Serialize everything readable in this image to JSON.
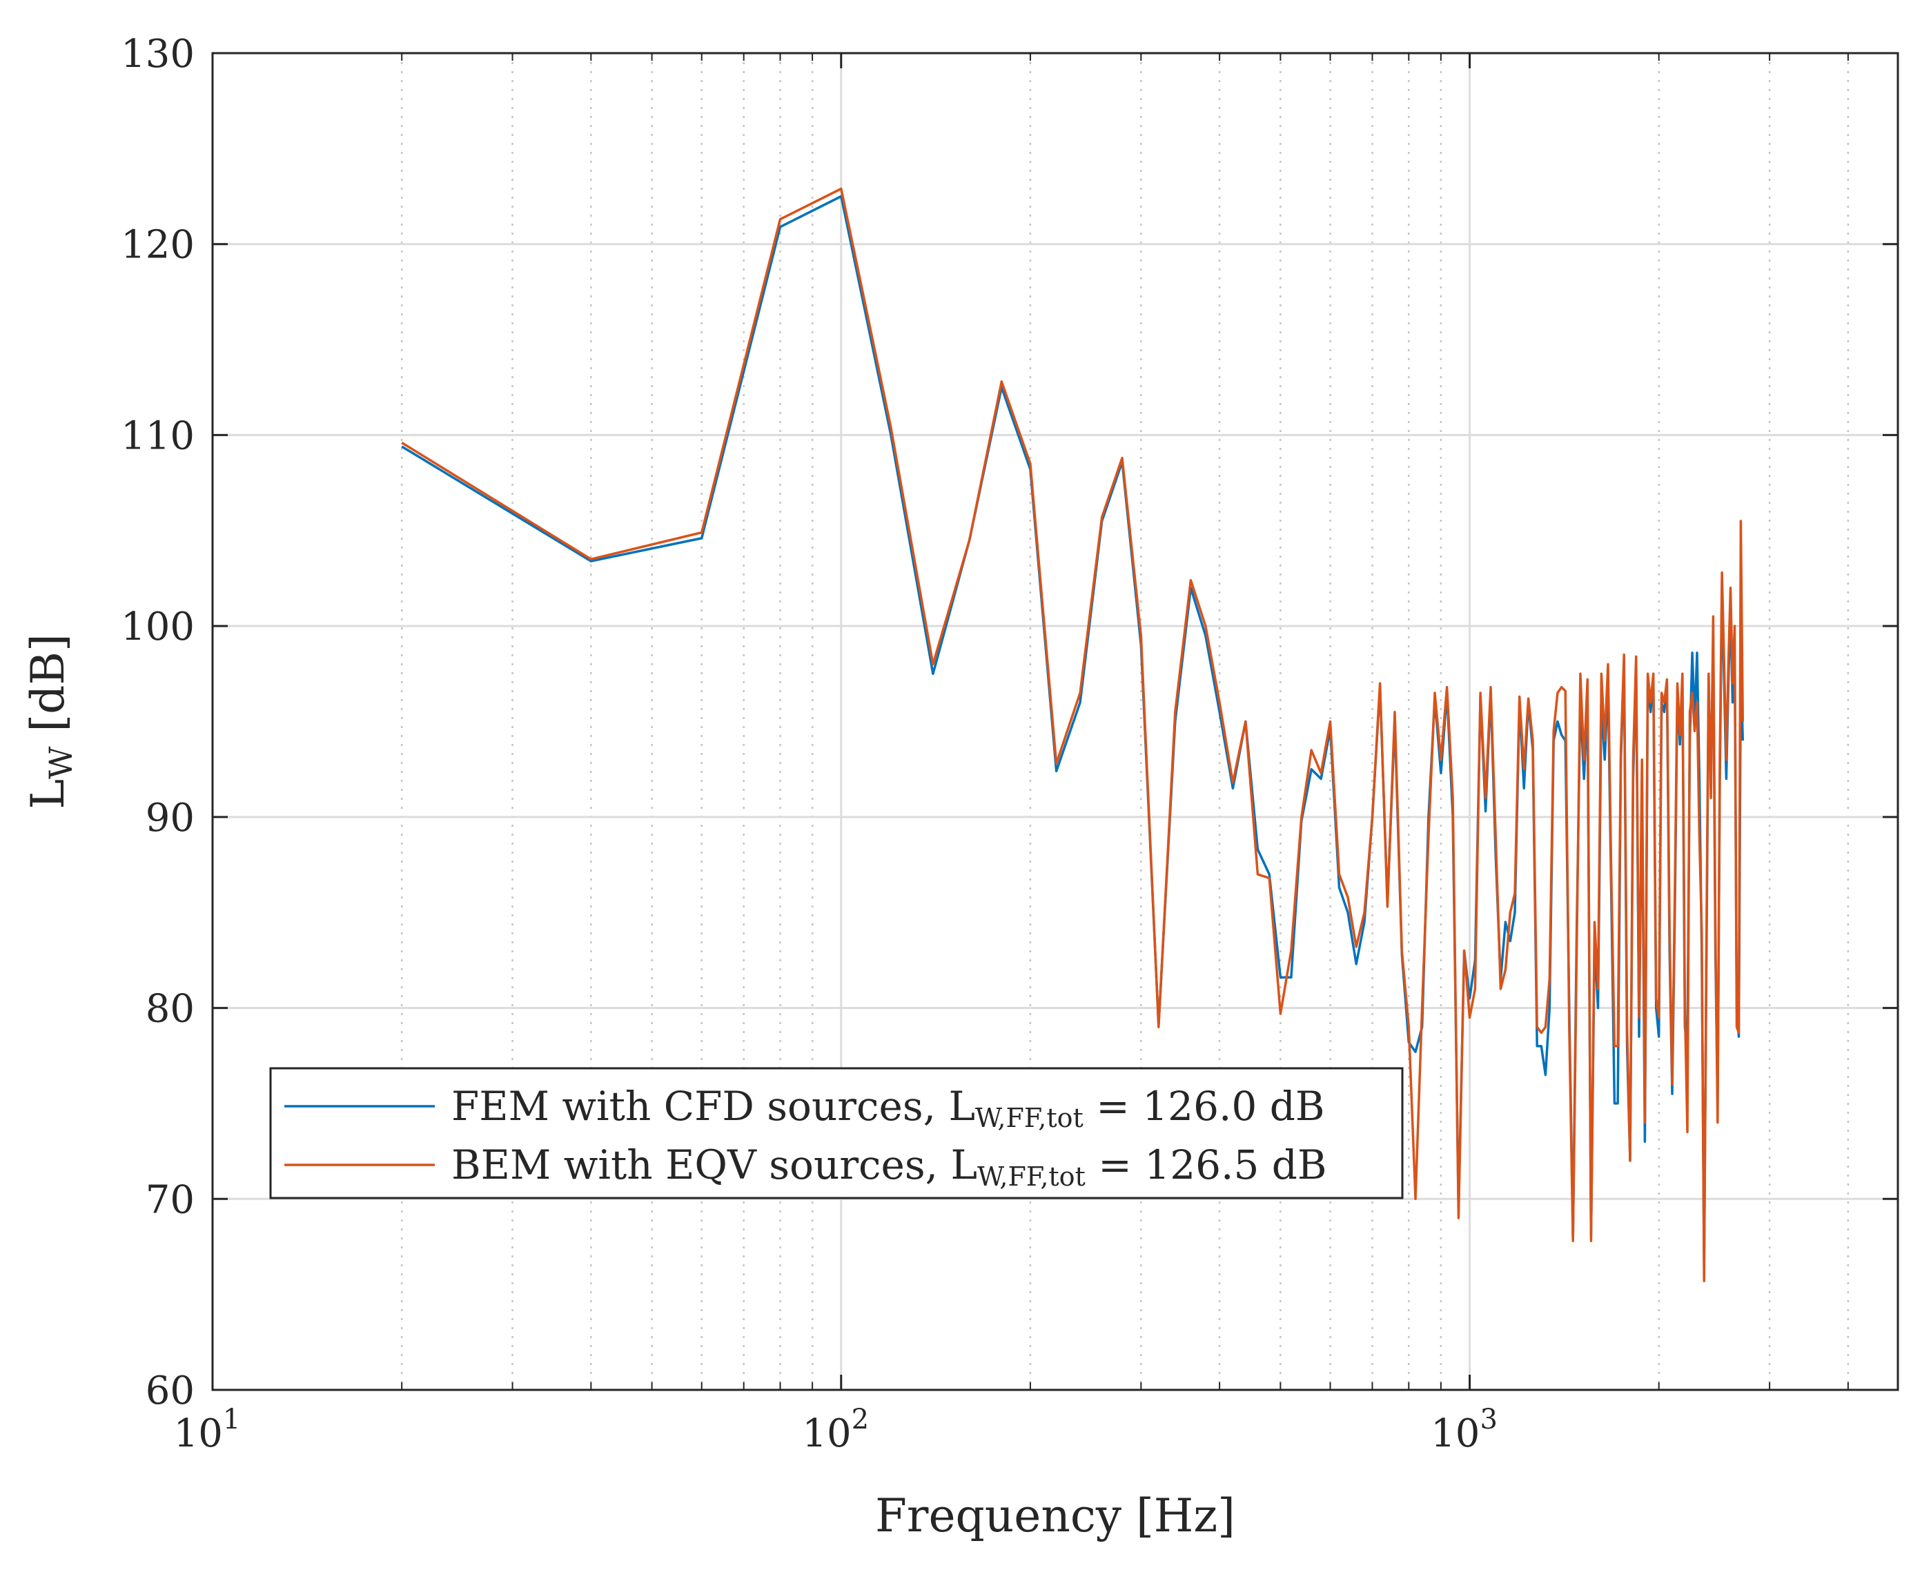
{
  "chart_data": {
    "type": "line",
    "x_scale": "log",
    "xlabel": "Frequency [Hz]",
    "ylabel": {
      "main": "L",
      "sub": "W",
      "unit": " [dB]"
    },
    "xlim": [
      10,
      4800
    ],
    "ylim": [
      60,
      130
    ],
    "grid": true,
    "x_major_ticks": [
      {
        "value": 10,
        "base": "10",
        "exp": "1"
      },
      {
        "value": 100,
        "base": "10",
        "exp": "2"
      },
      {
        "value": 1000,
        "base": "10",
        "exp": "3"
      }
    ],
    "y_ticks": [
      {
        "value": 60,
        "label": "60"
      },
      {
        "value": 70,
        "label": "70"
      },
      {
        "value": 80,
        "label": "80"
      },
      {
        "value": 90,
        "label": "90"
      },
      {
        "value": 100,
        "label": "100"
      },
      {
        "value": 110,
        "label": "110"
      },
      {
        "value": 120,
        "label": "120"
      },
      {
        "value": 130,
        "label": "130"
      }
    ],
    "legend_position": "bottom-left",
    "series": [
      {
        "name": "FEM with CFD sources",
        "legend_prefix": "FEM with CFD sources, ",
        "legend_sym": "L",
        "legend_sub": "W,FF,tot",
        "legend_suffix": " = 126.0 dB",
        "color": "#0072bd",
        "points": [
          [
            20,
            109.4
          ],
          [
            40,
            103.4
          ],
          [
            60,
            104.6
          ],
          [
            80,
            120.9
          ],
          [
            100,
            122.5
          ],
          [
            120,
            110.0
          ],
          [
            140,
            97.5
          ],
          [
            160,
            104.5
          ],
          [
            180,
            112.5
          ],
          [
            200,
            108.2
          ],
          [
            220,
            92.4
          ],
          [
            240,
            96.0
          ],
          [
            260,
            105.5
          ],
          [
            280,
            108.6
          ],
          [
            300,
            99.0
          ],
          [
            320,
            79.1
          ],
          [
            340,
            95.0
          ],
          [
            360,
            102.0
          ],
          [
            380,
            99.5
          ],
          [
            400,
            95.5
          ],
          [
            420,
            91.5
          ],
          [
            440,
            95.0
          ],
          [
            460,
            88.3
          ],
          [
            480,
            87.0
          ],
          [
            500,
            81.6
          ],
          [
            520,
            81.6
          ],
          [
            540,
            89.8
          ],
          [
            560,
            92.5
          ],
          [
            580,
            92.0
          ],
          [
            600,
            94.6
          ],
          [
            620,
            86.3
          ],
          [
            640,
            85.0
          ],
          [
            660,
            82.3
          ],
          [
            680,
            84.5
          ],
          [
            700,
            90.0
          ],
          [
            720,
            96.8
          ],
          [
            740,
            85.5
          ],
          [
            760,
            95.0
          ],
          [
            780,
            82.8
          ],
          [
            800,
            78.2
          ],
          [
            820,
            77.7
          ],
          [
            840,
            79.0
          ],
          [
            860,
            90.0
          ],
          [
            880,
            96.2
          ],
          [
            900,
            92.3
          ],
          [
            920,
            96.5
          ],
          [
            940,
            90.0
          ],
          [
            960,
            69.5
          ],
          [
            980,
            83.0
          ],
          [
            1000,
            80.5
          ],
          [
            1020,
            82.5
          ],
          [
            1040,
            96.3
          ],
          [
            1060,
            90.3
          ],
          [
            1080,
            96.5
          ],
          [
            1100,
            88.0
          ],
          [
            1120,
            81.5
          ],
          [
            1140,
            84.5
          ],
          [
            1160,
            83.5
          ],
          [
            1180,
            85.0
          ],
          [
            1200,
            96.0
          ],
          [
            1220,
            91.5
          ],
          [
            1240,
            96.0
          ],
          [
            1260,
            93.5
          ],
          [
            1280,
            78.0
          ],
          [
            1300,
            78.0
          ],
          [
            1320,
            76.5
          ],
          [
            1340,
            80.0
          ],
          [
            1360,
            94.0
          ],
          [
            1380,
            95.0
          ],
          [
            1400,
            94.3
          ],
          [
            1420,
            94.0
          ],
          [
            1440,
            80.0
          ],
          [
            1460,
            68.0
          ],
          [
            1480,
            84.0
          ],
          [
            1500,
            96.0
          ],
          [
            1520,
            92.0
          ],
          [
            1540,
            96.0
          ],
          [
            1560,
            68.0
          ],
          [
            1580,
            83.5
          ],
          [
            1600,
            80.0
          ],
          [
            1620,
            96.0
          ],
          [
            1640,
            93.0
          ],
          [
            1660,
            97.0
          ],
          [
            1680,
            86.0
          ],
          [
            1700,
            75.0
          ],
          [
            1720,
            75.0
          ],
          [
            1740,
            93.0
          ],
          [
            1760,
            98.0
          ],
          [
            1780,
            78.0
          ],
          [
            1800,
            72.0
          ],
          [
            1820,
            92.0
          ],
          [
            1840,
            98.0
          ],
          [
            1860,
            78.5
          ],
          [
            1880,
            92.0
          ],
          [
            1900,
            73.0
          ],
          [
            1920,
            97.0
          ],
          [
            1940,
            95.5
          ],
          [
            1960,
            97.2
          ],
          [
            1980,
            80.0
          ],
          [
            2000,
            78.5
          ],
          [
            2020,
            96.0
          ],
          [
            2040,
            95.5
          ],
          [
            2060,
            97.0
          ],
          [
            2080,
            83.0
          ],
          [
            2100,
            75.5
          ],
          [
            2120,
            85.0
          ],
          [
            2140,
            96.5
          ],
          [
            2160,
            93.8
          ],
          [
            2180,
            97.2
          ],
          [
            2200,
            79.0
          ],
          [
            2220,
            78.0
          ],
          [
            2240,
            94.0
          ],
          [
            2260,
            98.6
          ],
          [
            2280,
            95.0
          ],
          [
            2300,
            98.6
          ],
          [
            2320,
            92.0
          ],
          [
            2340,
            83.0
          ],
          [
            2360,
            66.5
          ],
          [
            2380,
            82.0
          ],
          [
            2400,
            97.0
          ],
          [
            2420,
            92.0
          ],
          [
            2440,
            99.5
          ],
          [
            2460,
            83.0
          ],
          [
            2480,
            75.0
          ],
          [
            2500,
            92.0
          ],
          [
            2520,
            102.0
          ],
          [
            2540,
            97.0
          ],
          [
            2560,
            92.0
          ],
          [
            2580,
            97.0
          ],
          [
            2600,
            101.0
          ],
          [
            2620,
            96.0
          ],
          [
            2640,
            99.0
          ],
          [
            2660,
            80.0
          ],
          [
            2680,
            78.5
          ],
          [
            2700,
            98.0
          ],
          [
            2720,
            94.0
          ]
        ]
      },
      {
        "name": "BEM with EQV sources",
        "legend_prefix": "BEM with EQV sources, ",
        "legend_sym": "L",
        "legend_sub": "W,FF,tot",
        "legend_suffix": " = 126.5 dB",
        "color": "#d95319",
        "points": [
          [
            20,
            109.6
          ],
          [
            40,
            103.5
          ],
          [
            60,
            104.9
          ],
          [
            80,
            121.3
          ],
          [
            100,
            122.9
          ],
          [
            120,
            110.4
          ],
          [
            140,
            98.0
          ],
          [
            160,
            104.5
          ],
          [
            180,
            112.8
          ],
          [
            200,
            108.5
          ],
          [
            220,
            92.8
          ],
          [
            240,
            96.5
          ],
          [
            260,
            105.7
          ],
          [
            280,
            108.8
          ],
          [
            300,
            99.5
          ],
          [
            320,
            79.0
          ],
          [
            340,
            95.5
          ],
          [
            360,
            102.4
          ],
          [
            380,
            100.0
          ],
          [
            400,
            96.0
          ],
          [
            420,
            91.8
          ],
          [
            440,
            95.0
          ],
          [
            460,
            87.0
          ],
          [
            480,
            86.8
          ],
          [
            500,
            79.7
          ],
          [
            520,
            83.0
          ],
          [
            540,
            90.0
          ],
          [
            560,
            93.5
          ],
          [
            580,
            92.3
          ],
          [
            600,
            95.0
          ],
          [
            620,
            87.0
          ],
          [
            640,
            85.8
          ],
          [
            660,
            83.2
          ],
          [
            680,
            85.0
          ],
          [
            700,
            90.0
          ],
          [
            720,
            97.0
          ],
          [
            740,
            85.3
          ],
          [
            760,
            95.5
          ],
          [
            780,
            83.0
          ],
          [
            800,
            79.0
          ],
          [
            820,
            70.0
          ],
          [
            840,
            80.0
          ],
          [
            860,
            89.0
          ],
          [
            880,
            96.5
          ],
          [
            900,
            93.0
          ],
          [
            920,
            96.8
          ],
          [
            940,
            91.0
          ],
          [
            960,
            69.0
          ],
          [
            980,
            83.0
          ],
          [
            1000,
            79.5
          ],
          [
            1020,
            81.0
          ],
          [
            1040,
            96.5
          ],
          [
            1060,
            91.0
          ],
          [
            1080,
            96.8
          ],
          [
            1100,
            89.0
          ],
          [
            1120,
            81.0
          ],
          [
            1140,
            82.0
          ],
          [
            1160,
            85.0
          ],
          [
            1180,
            86.0
          ],
          [
            1200,
            96.3
          ],
          [
            1220,
            92.5
          ],
          [
            1240,
            96.2
          ],
          [
            1260,
            94.0
          ],
          [
            1280,
            79.0
          ],
          [
            1300,
            78.7
          ],
          [
            1320,
            79.0
          ],
          [
            1340,
            81.5
          ],
          [
            1360,
            94.5
          ],
          [
            1380,
            96.5
          ],
          [
            1400,
            96.8
          ],
          [
            1420,
            96.6
          ],
          [
            1440,
            79.0
          ],
          [
            1460,
            67.8
          ],
          [
            1480,
            83.0
          ],
          [
            1500,
            97.5
          ],
          [
            1520,
            93.0
          ],
          [
            1540,
            97.2
          ],
          [
            1560,
            67.8
          ],
          [
            1580,
            84.5
          ],
          [
            1600,
            81.0
          ],
          [
            1620,
            97.5
          ],
          [
            1640,
            94.0
          ],
          [
            1660,
            98.0
          ],
          [
            1680,
            87.0
          ],
          [
            1700,
            78.0
          ],
          [
            1720,
            78.0
          ],
          [
            1740,
            93.5
          ],
          [
            1760,
            98.5
          ],
          [
            1780,
            79.0
          ],
          [
            1800,
            72.0
          ],
          [
            1820,
            93.0
          ],
          [
            1840,
            98.4
          ],
          [
            1860,
            79.5
          ],
          [
            1880,
            93.0
          ],
          [
            1900,
            74.0
          ],
          [
            1920,
            97.5
          ],
          [
            1940,
            96.0
          ],
          [
            1960,
            97.5
          ],
          [
            1980,
            80.5
          ],
          [
            2000,
            79.5
          ],
          [
            2020,
            96.5
          ],
          [
            2040,
            96.0
          ],
          [
            2060,
            97.2
          ],
          [
            2080,
            84.0
          ],
          [
            2100,
            76.0
          ],
          [
            2120,
            86.0
          ],
          [
            2140,
            97.0
          ],
          [
            2160,
            94.3
          ],
          [
            2180,
            97.5
          ],
          [
            2200,
            80.0
          ],
          [
            2220,
            73.5
          ],
          [
            2240,
            95.5
          ],
          [
            2260,
            96.5
          ],
          [
            2280,
            94.5
          ],
          [
            2300,
            96.0
          ],
          [
            2320,
            89.0
          ],
          [
            2340,
            84.0
          ],
          [
            2360,
            65.7
          ],
          [
            2380,
            83.0
          ],
          [
            2400,
            97.5
          ],
          [
            2420,
            91.0
          ],
          [
            2440,
            100.5
          ],
          [
            2460,
            84.0
          ],
          [
            2480,
            74.0
          ],
          [
            2500,
            93.0
          ],
          [
            2520,
            102.8
          ],
          [
            2540,
            98.0
          ],
          [
            2560,
            93.0
          ],
          [
            2580,
            98.0
          ],
          [
            2600,
            102.0
          ],
          [
            2620,
            97.0
          ],
          [
            2640,
            100.0
          ],
          [
            2660,
            79.0
          ],
          [
            2680,
            78.7
          ],
          [
            2700,
            105.5
          ],
          [
            2720,
            95.0
          ]
        ]
      }
    ]
  }
}
